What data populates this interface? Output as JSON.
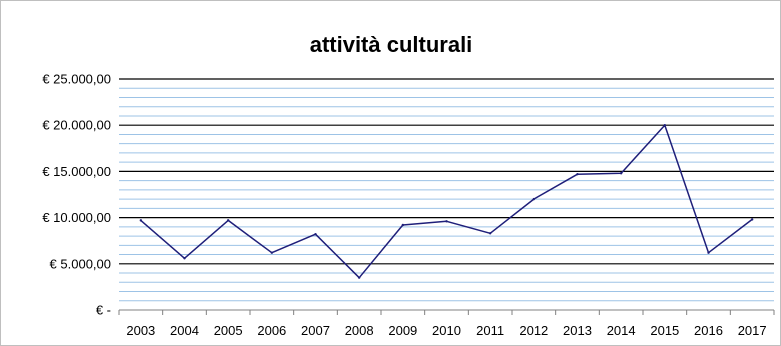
{
  "chart_data": {
    "type": "line",
    "title": "attività culturali",
    "xlabel": "",
    "ylabel": "",
    "categories": [
      "2003",
      "2004",
      "2005",
      "2006",
      "2007",
      "2008",
      "2009",
      "2010",
      "2011",
      "2012",
      "2013",
      "2014",
      "2015",
      "2016",
      "2017"
    ],
    "series": [
      {
        "values": [
          9700,
          5600,
          9700,
          6200,
          8200,
          3500,
          9200,
          9600,
          8300,
          12000,
          14700,
          14800,
          20000,
          6200,
          9800
        ]
      }
    ],
    "ylim": [
      0,
      25000
    ],
    "y_major_ticks": [
      0,
      5000,
      10000,
      15000,
      20000,
      25000
    ],
    "y_tick_labels": [
      "€ -",
      "€ 5.000,00",
      "€ 10.000,00",
      "€ 15.000,00",
      "€ 20.000,00",
      "€ 25.000,00"
    ],
    "y_minor_step": 1000,
    "grid": true,
    "legend": "none",
    "colors": {
      "line": "#1f1f7a",
      "major_grid": "#000000",
      "minor_grid": "#9dc3e6",
      "axis": "#808080"
    }
  }
}
